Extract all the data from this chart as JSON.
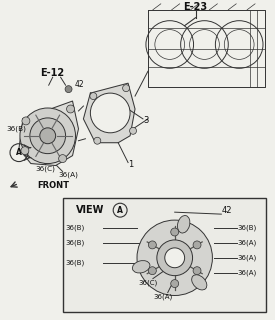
{
  "bg_color": "#f0f0eb",
  "line_color": "#333333",
  "title_e23": "E-23",
  "title_e12": "E-12",
  "label_front": "FRONT",
  "label_42_main": "42",
  "label_42_view": "42",
  "label_1": "1",
  "label_3": "3",
  "label_36b": "36(B)",
  "label_36c": "36(C)",
  "label_36a": "36(A)"
}
